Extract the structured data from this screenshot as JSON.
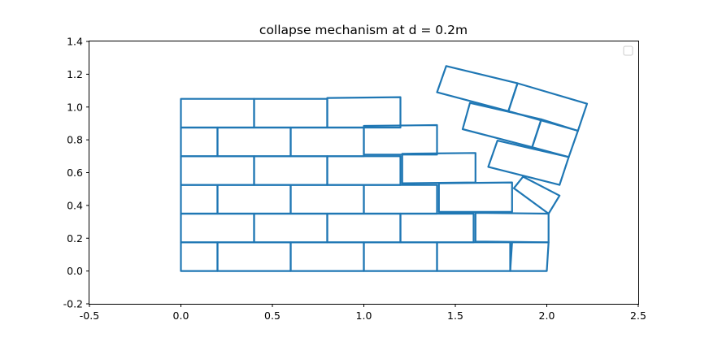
{
  "chart_data": {
    "type": "line",
    "title": "collapse mechanism at d = 0.2m",
    "xlim": [
      -0.5,
      2.5
    ],
    "ylim": [
      -0.2,
      1.4
    ],
    "xticks": [
      "-0.5",
      "0.0",
      "0.5",
      "1.0",
      "1.5",
      "2.0",
      "2.5"
    ],
    "yticks": [
      "-0.2",
      "0.0",
      "0.2",
      "0.4",
      "0.6",
      "0.8",
      "1.0",
      "1.2",
      "1.4"
    ],
    "grid": false,
    "legend": {
      "placement": "top-right",
      "entries": []
    },
    "series_color": "#1f77b4",
    "blocks": [
      {
        "pts": [
          [
            0.0,
            0.0
          ],
          [
            0.2,
            0.0
          ],
          [
            0.2,
            0.175
          ],
          [
            0.0,
            0.175
          ]
        ]
      },
      {
        "pts": [
          [
            0.2,
            0.0
          ],
          [
            0.6,
            0.0
          ],
          [
            0.6,
            0.175
          ],
          [
            0.2,
            0.175
          ]
        ]
      },
      {
        "pts": [
          [
            0.6,
            0.0
          ],
          [
            1.0,
            0.0
          ],
          [
            1.0,
            0.175
          ],
          [
            0.6,
            0.175
          ]
        ]
      },
      {
        "pts": [
          [
            1.0,
            0.0
          ],
          [
            1.4,
            0.0
          ],
          [
            1.4,
            0.175
          ],
          [
            1.0,
            0.175
          ]
        ]
      },
      {
        "pts": [
          [
            1.4,
            0.0
          ],
          [
            1.8,
            0.0
          ],
          [
            1.8,
            0.175
          ],
          [
            1.4,
            0.175
          ]
        ]
      },
      {
        "pts": [
          [
            1.8,
            0.0
          ],
          [
            2.0,
            0.0
          ],
          [
            2.01,
            0.175
          ],
          [
            1.81,
            0.175
          ]
        ]
      },
      {
        "pts": [
          [
            0.0,
            0.175
          ],
          [
            0.4,
            0.175
          ],
          [
            0.4,
            0.35
          ],
          [
            0.0,
            0.35
          ]
        ]
      },
      {
        "pts": [
          [
            0.4,
            0.175
          ],
          [
            0.8,
            0.175
          ],
          [
            0.8,
            0.35
          ],
          [
            0.4,
            0.35
          ]
        ]
      },
      {
        "pts": [
          [
            0.8,
            0.175
          ],
          [
            1.2,
            0.175
          ],
          [
            1.2,
            0.35
          ],
          [
            0.8,
            0.35
          ]
        ]
      },
      {
        "pts": [
          [
            1.2,
            0.175
          ],
          [
            1.6,
            0.175
          ],
          [
            1.6,
            0.35
          ],
          [
            1.2,
            0.35
          ]
        ]
      },
      {
        "pts": [
          [
            1.61,
            0.18
          ],
          [
            2.01,
            0.175
          ],
          [
            2.01,
            0.35
          ],
          [
            1.61,
            0.355
          ]
        ]
      },
      {
        "pts": [
          [
            0.0,
            0.35
          ],
          [
            0.2,
            0.35
          ],
          [
            0.2,
            0.525
          ],
          [
            0.0,
            0.525
          ]
        ]
      },
      {
        "pts": [
          [
            0.2,
            0.35
          ],
          [
            0.6,
            0.35
          ],
          [
            0.6,
            0.525
          ],
          [
            0.2,
            0.525
          ]
        ]
      },
      {
        "pts": [
          [
            0.6,
            0.35
          ],
          [
            1.0,
            0.35
          ],
          [
            1.0,
            0.525
          ],
          [
            0.6,
            0.525
          ]
        ]
      },
      {
        "pts": [
          [
            1.0,
            0.35
          ],
          [
            1.4,
            0.35
          ],
          [
            1.4,
            0.525
          ],
          [
            1.0,
            0.525
          ]
        ]
      },
      {
        "pts": [
          [
            1.41,
            0.36
          ],
          [
            1.81,
            0.36
          ],
          [
            1.81,
            0.54
          ],
          [
            1.41,
            0.535
          ]
        ]
      },
      {
        "pts": [
          [
            1.82,
            0.505
          ],
          [
            2.01,
            0.35
          ],
          [
            2.07,
            0.46
          ],
          [
            1.87,
            0.575
          ]
        ]
      },
      {
        "pts": [
          [
            0.0,
            0.525
          ],
          [
            0.4,
            0.525
          ],
          [
            0.4,
            0.7
          ],
          [
            0.0,
            0.7
          ]
        ]
      },
      {
        "pts": [
          [
            0.4,
            0.525
          ],
          [
            0.8,
            0.525
          ],
          [
            0.8,
            0.7
          ],
          [
            0.4,
            0.7
          ]
        ]
      },
      {
        "pts": [
          [
            0.8,
            0.525
          ],
          [
            1.2,
            0.525
          ],
          [
            1.2,
            0.7
          ],
          [
            0.8,
            0.7
          ]
        ]
      },
      {
        "pts": [
          [
            1.21,
            0.535
          ],
          [
            1.61,
            0.54
          ],
          [
            1.61,
            0.72
          ],
          [
            1.21,
            0.715
          ]
        ]
      },
      {
        "pts": [
          [
            1.68,
            0.635
          ],
          [
            2.07,
            0.525
          ],
          [
            2.12,
            0.695
          ],
          [
            1.73,
            0.795
          ]
        ]
      },
      {
        "pts": [
          [
            0.0,
            0.7
          ],
          [
            0.2,
            0.7
          ],
          [
            0.2,
            0.875
          ],
          [
            0.0,
            0.875
          ]
        ]
      },
      {
        "pts": [
          [
            0.2,
            0.7
          ],
          [
            0.6,
            0.7
          ],
          [
            0.6,
            0.875
          ],
          [
            0.2,
            0.875
          ]
        ]
      },
      {
        "pts": [
          [
            0.6,
            0.7
          ],
          [
            1.0,
            0.7
          ],
          [
            1.0,
            0.875
          ],
          [
            0.6,
            0.875
          ]
        ]
      },
      {
        "pts": [
          [
            1.0,
            0.71
          ],
          [
            1.4,
            0.71
          ],
          [
            1.4,
            0.89
          ],
          [
            1.0,
            0.885
          ]
        ]
      },
      {
        "pts": [
          [
            1.54,
            0.865
          ],
          [
            1.92,
            0.755
          ],
          [
            1.97,
            0.925
          ],
          [
            1.58,
            1.025
          ]
        ]
      },
      {
        "pts": [
          [
            1.92,
            0.755
          ],
          [
            2.12,
            0.695
          ],
          [
            2.17,
            0.855
          ],
          [
            1.97,
            0.925
          ]
        ]
      },
      {
        "pts": [
          [
            0.0,
            0.875
          ],
          [
            0.4,
            0.875
          ],
          [
            0.4,
            1.05
          ],
          [
            0.0,
            1.05
          ]
        ]
      },
      {
        "pts": [
          [
            0.4,
            0.875
          ],
          [
            0.8,
            0.875
          ],
          [
            0.8,
            1.05
          ],
          [
            0.4,
            1.05
          ]
        ]
      },
      {
        "pts": [
          [
            0.8,
            0.875
          ],
          [
            1.2,
            0.875
          ],
          [
            1.2,
            1.06
          ],
          [
            0.8,
            1.055
          ]
        ]
      },
      {
        "pts": [
          [
            1.4,
            1.09
          ],
          [
            1.79,
            0.975
          ],
          [
            1.84,
            1.145
          ],
          [
            1.45,
            1.25
          ]
        ]
      },
      {
        "pts": [
          [
            1.79,
            0.975
          ],
          [
            2.17,
            0.855
          ],
          [
            2.22,
            1.02
          ],
          [
            1.84,
            1.145
          ]
        ]
      }
    ]
  }
}
